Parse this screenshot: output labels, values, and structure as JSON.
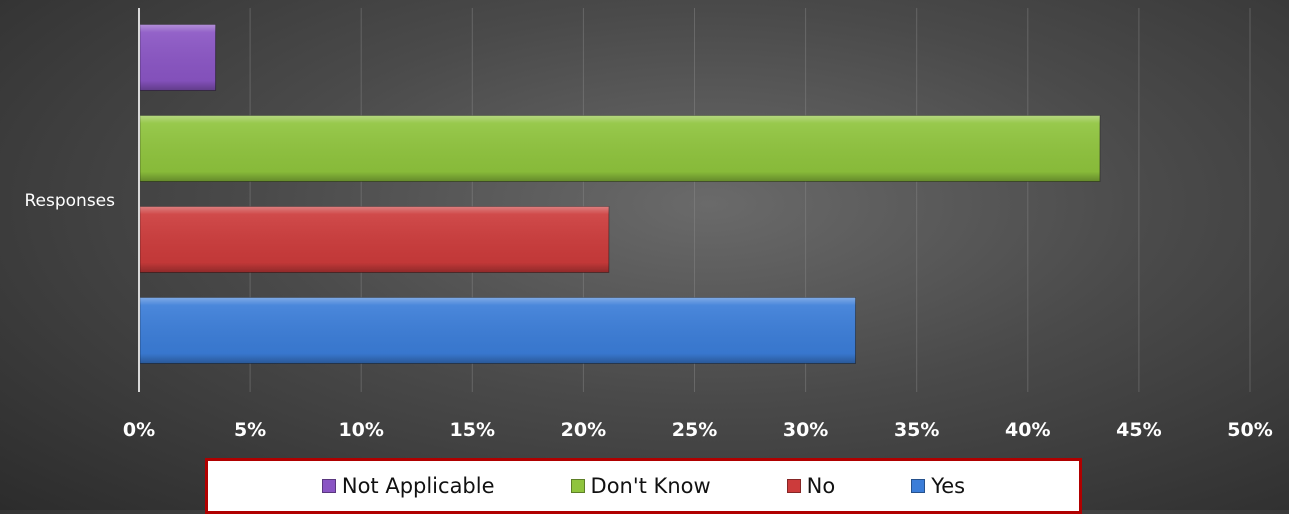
{
  "chart_data": {
    "type": "bar",
    "orientation": "horizontal",
    "categories": [
      "Responses"
    ],
    "series": [
      {
        "name": "Yes",
        "values": [
          32.2
        ],
        "color": "#3b7dd8"
      },
      {
        "name": "No",
        "values": [
          21.1
        ],
        "color": "#cc3b3b"
      },
      {
        "name": "Don't Know",
        "values": [
          43.2
        ],
        "color": "#8fc43d"
      },
      {
        "name": "Not Applicable",
        "values": [
          3.4
        ],
        "color": "#8a55c4"
      }
    ],
    "xlim": [
      0,
      50
    ],
    "x_ticks": [
      "0%",
      "5%",
      "10%",
      "15%",
      "20%",
      "25%",
      "30%",
      "35%",
      "40%",
      "45%",
      "50%"
    ],
    "grid": true,
    "legend_position": "bottom",
    "legend_order": [
      "Not Applicable",
      "Don't Know",
      "No",
      "Yes"
    ],
    "title": "",
    "xlabel": "",
    "ylabel": ""
  }
}
